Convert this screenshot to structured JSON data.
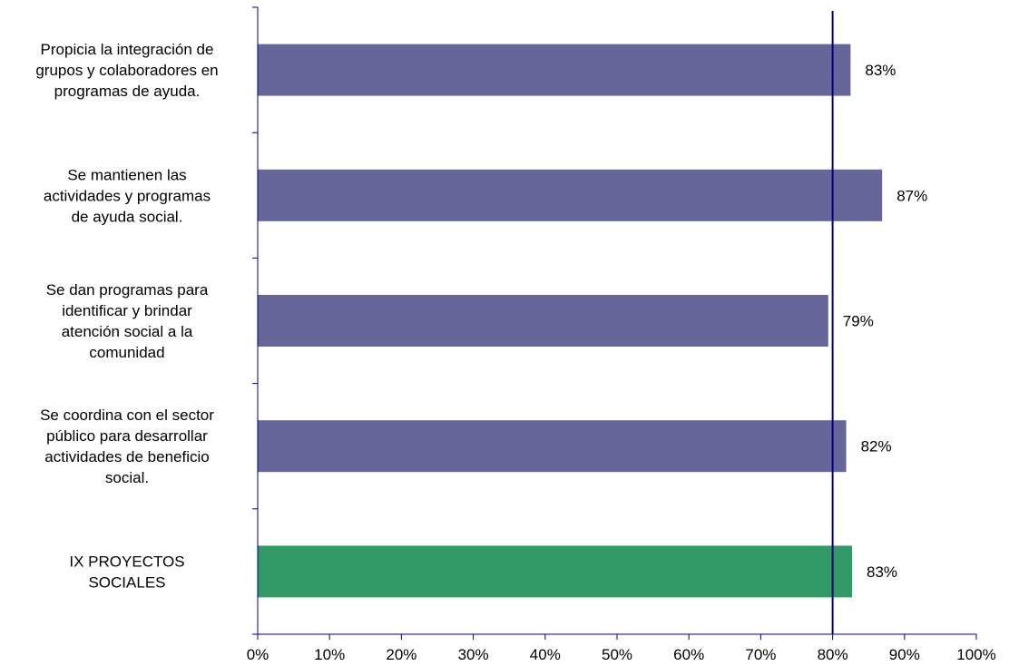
{
  "chart_data": {
    "type": "bar",
    "orientation": "horizontal",
    "categories": [
      [
        "Propicia la integración de",
        "grupos y colaboradores en",
        "programas de ayuda."
      ],
      [
        "Se mantienen las",
        "actividades y programas",
        "de ayuda social."
      ],
      [
        "Se dan programas para",
        "identificar y brindar",
        "atención social a la",
        "comunidad"
      ],
      [
        "Se coordina con el sector",
        "público para desarrollar",
        "actividades de beneficio",
        "social."
      ],
      [
        "IX PROYECTOS",
        "SOCIALES"
      ]
    ],
    "values": [
      0.825,
      0.869,
      0.794,
      0.819,
      0.827
    ],
    "data_labels": [
      "83%",
      "87%",
      "79%",
      "82%",
      "83%"
    ],
    "bar_colors": [
      "#676699",
      "#676699",
      "#676699",
      "#676699",
      "#339966"
    ],
    "xlim": [
      0,
      1
    ],
    "x_ticks": [
      0,
      0.1,
      0.2,
      0.3,
      0.4,
      0.5,
      0.6,
      0.7,
      0.8,
      0.9,
      1.0
    ],
    "x_tick_labels": [
      "0%",
      "10%",
      "20%",
      "30%",
      "40%",
      "50%",
      "60%",
      "70%",
      "80%",
      "90%",
      "100%"
    ],
    "reference_line": {
      "value": 0.8,
      "color": "#000080"
    },
    "axis_color": "#000080",
    "grid": false,
    "legend": "none"
  }
}
